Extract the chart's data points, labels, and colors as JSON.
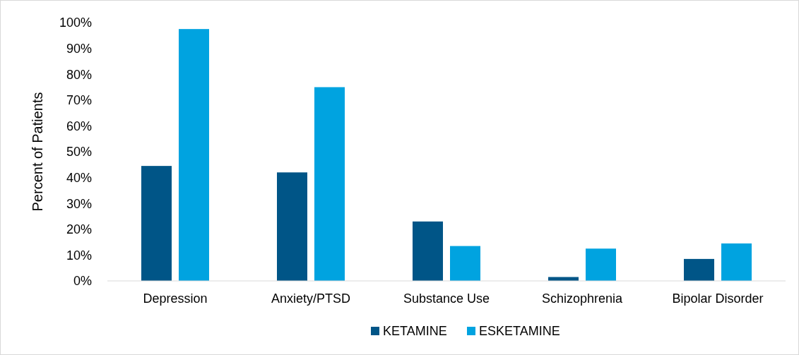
{
  "chart_data": {
    "type": "bar",
    "ylabel": "Percent of Patients",
    "categories": [
      "Depression",
      "Anxiety/PTSD",
      "Substance Use",
      "Schizophrenia",
      "Bipolar Disorder"
    ],
    "series": [
      {
        "name": "KETAMINE",
        "color": "#005587",
        "values": [
          44.5,
          42,
          23,
          1.5,
          8.5
        ]
      },
      {
        "name": "ESKETAMINE",
        "color": "#00a3e0",
        "values": [
          97.5,
          75,
          13.5,
          12.5,
          14.5
        ]
      }
    ],
    "ylim": [
      0,
      100
    ],
    "yticks": [
      {
        "value": 0,
        "label": "0%"
      },
      {
        "value": 10,
        "label": "10%"
      },
      {
        "value": 20,
        "label": "20%"
      },
      {
        "value": 30,
        "label": "30%"
      },
      {
        "value": 40,
        "label": "40%"
      },
      {
        "value": 50,
        "label": "50%"
      },
      {
        "value": 60,
        "label": "60%"
      },
      {
        "value": 70,
        "label": "70%"
      },
      {
        "value": 80,
        "label": "80%"
      },
      {
        "value": 90,
        "label": "90%"
      },
      {
        "value": 100,
        "label": "100%"
      }
    ],
    "grid": false,
    "legend": "bottom"
  }
}
